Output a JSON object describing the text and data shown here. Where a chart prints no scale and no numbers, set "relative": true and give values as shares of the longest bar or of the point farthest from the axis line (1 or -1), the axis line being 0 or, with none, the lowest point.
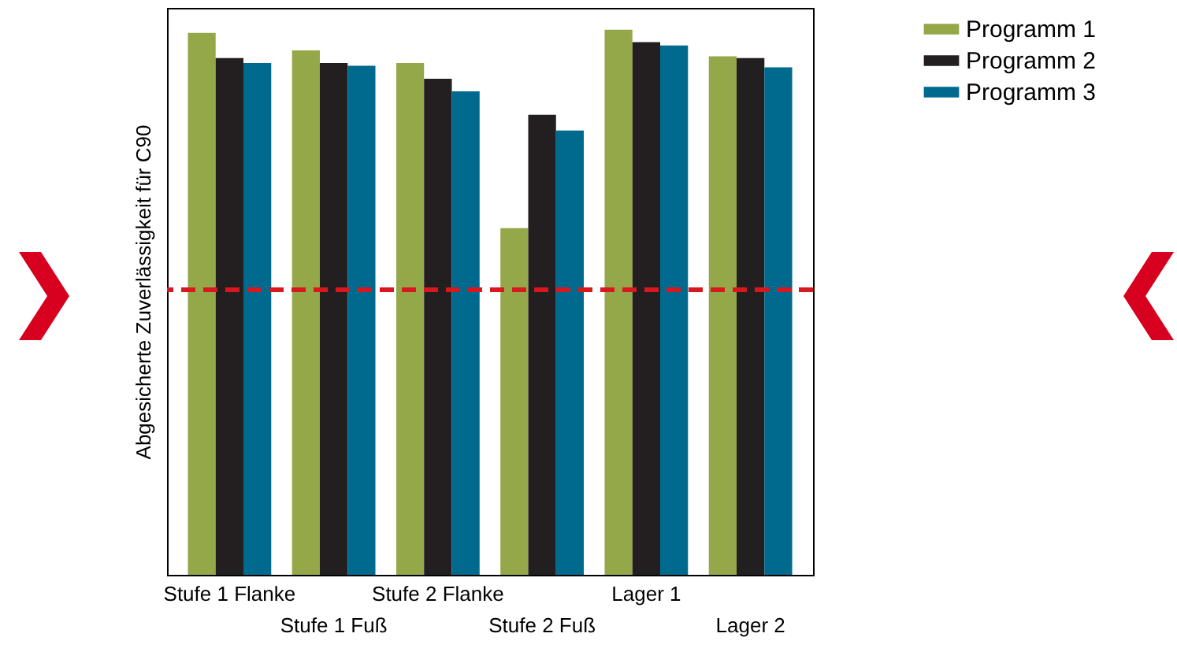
{
  "chart_data": {
    "type": "bar",
    "relative": true,
    "ylabel": "Abgesicherte Zuverlässigkeit für C90",
    "categories": [
      "Stufe 1 Flanke",
      "Stufe 1 Fuß",
      "Stufe 2 Flanke",
      "Stufe 2 Fuß",
      "Lager 1",
      "Lager 2"
    ],
    "series": [
      {
        "name": "Programm 1",
        "color": "#94a84a",
        "values": [
          0.994,
          0.962,
          0.939,
          0.636,
          1,
          0.951
        ]
      },
      {
        "name": "Programm 2",
        "color": "#231f20",
        "values": [
          0.948,
          0.939,
          0.91,
          0.844,
          0.977,
          0.948
        ]
      },
      {
        "name": "Programm 3",
        "color": "#006a8e",
        "values": [
          0.939,
          0.934,
          0.887,
          0.815,
          0.971,
          0.931
        ]
      }
    ],
    "ref_lines": [
      {
        "axis": "y",
        "value": 0.523,
        "color": "#d7191f",
        "line_style": "dashed"
      }
    ],
    "legend": "top right",
    "grid": false
  }
}
